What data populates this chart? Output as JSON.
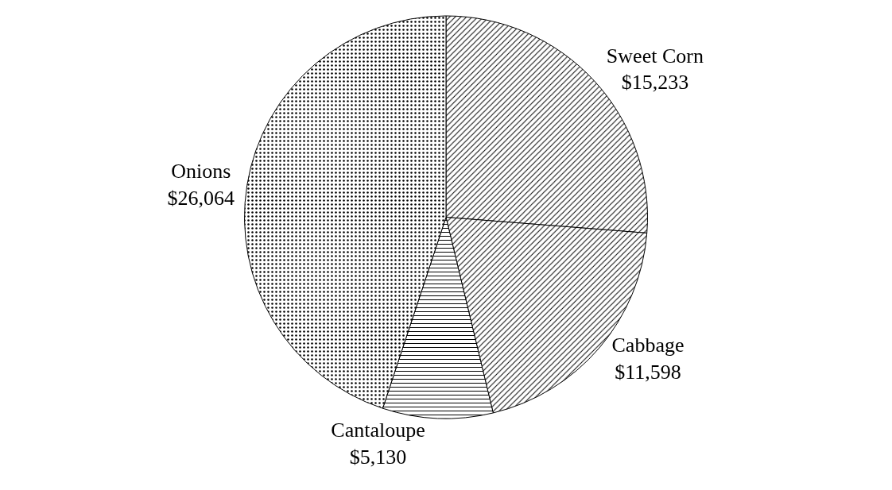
{
  "chart_data": {
    "type": "pie",
    "categories": [
      "Sweet Corn",
      "Cabbage",
      "Cantaloupe",
      "Onions"
    ],
    "values": [
      15233,
      11598,
      5130,
      26064
    ],
    "value_labels": [
      "$15,233",
      "$11,598",
      "$5,130",
      "$26,064"
    ],
    "legend": false
  }
}
